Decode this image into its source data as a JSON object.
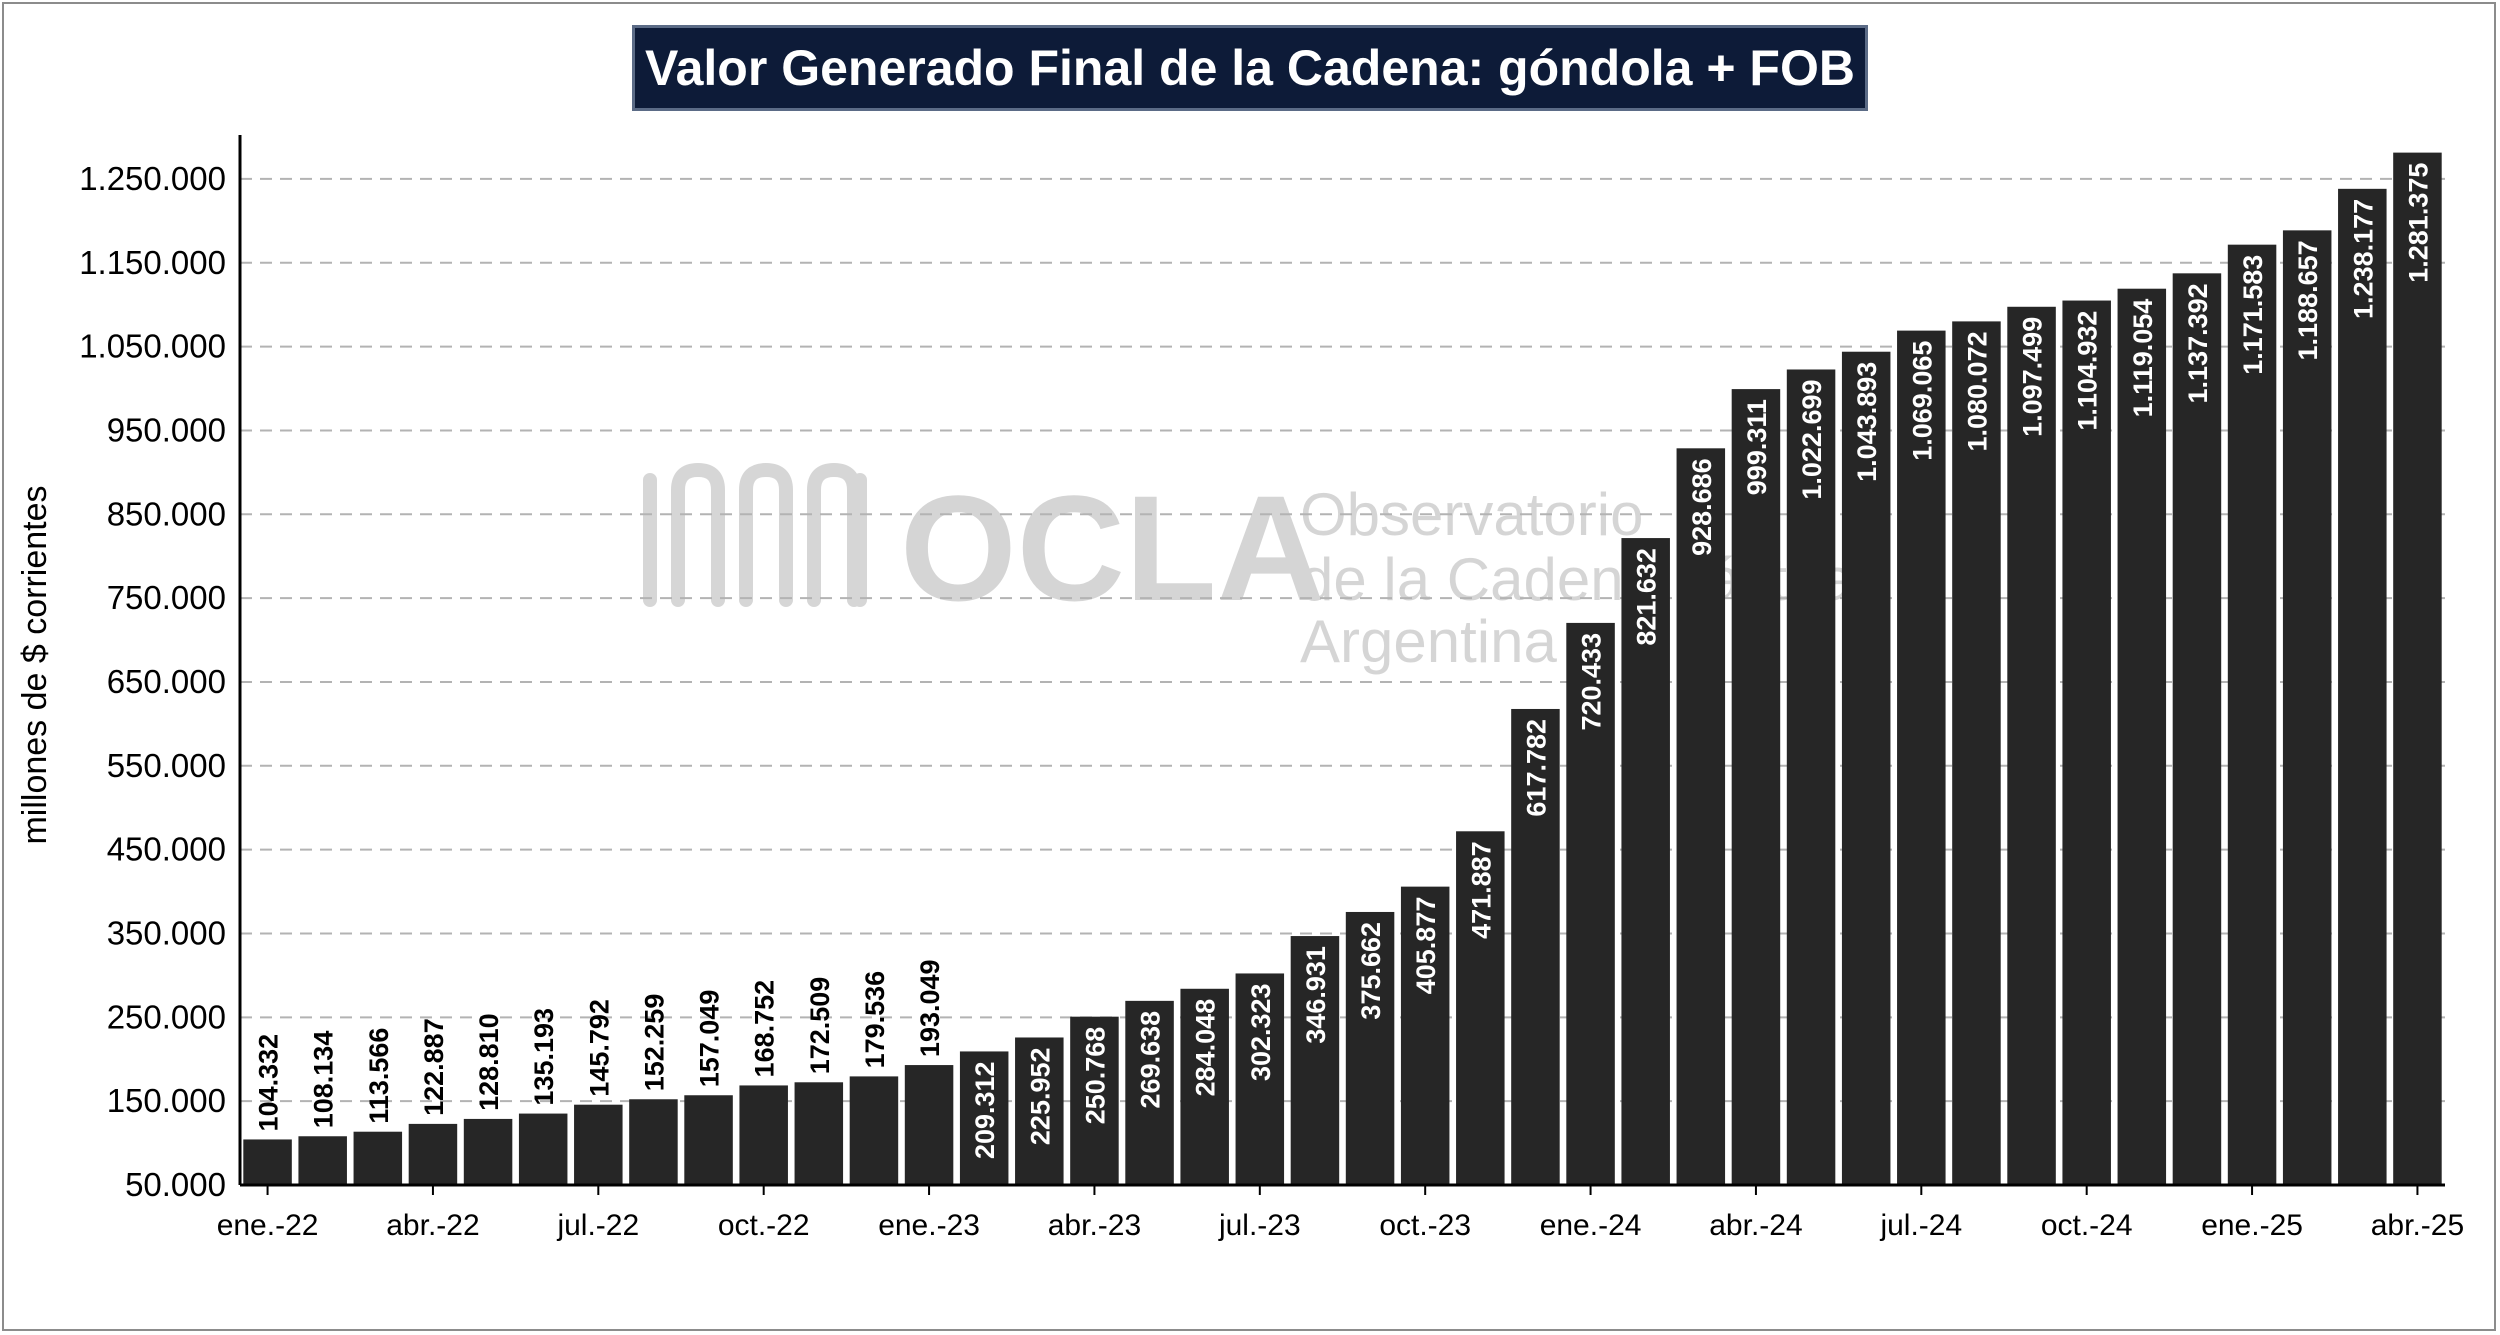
{
  "chart_data": {
    "type": "bar",
    "title": "Valor Generado Final de la Cadena: góndola + FOB",
    "xlabel": "",
    "ylabel": "millones de $ corrientes",
    "ylim": [
      50000,
      1300000
    ],
    "yticks": [
      50000,
      150000,
      250000,
      350000,
      450000,
      550000,
      650000,
      750000,
      850000,
      950000,
      1050000,
      1150000,
      1250000
    ],
    "ytick_labels": [
      "50.000",
      "150.000",
      "250.000",
      "350.000",
      "450.000",
      "550.000",
      "650.000",
      "750.000",
      "850.000",
      "950.000",
      "1.050.000",
      "1.150.000",
      "1.250.000"
    ],
    "x_tick_labels": [
      "ene.-22",
      "",
      "",
      "abr.-22",
      "",
      "",
      "jul.-22",
      "",
      "",
      "oct.-22",
      "",
      "",
      "ene.-23",
      "",
      "",
      "abr.-23",
      "",
      "",
      "jul.-23",
      "",
      "",
      "oct.-23",
      "",
      "",
      "ene.-24",
      "",
      "",
      "abr.-24",
      "",
      "",
      "jul.-24",
      "",
      "",
      "oct.-24",
      "",
      "",
      "ene.-25",
      "",
      "",
      "abr.-25"
    ],
    "values": [
      104332,
      108134,
      113566,
      122887,
      128810,
      135193,
      145792,
      152259,
      157049,
      168752,
      172509,
      179536,
      193049,
      209312,
      225952,
      250768,
      269638,
      284048,
      302323,
      346931,
      375662,
      405877,
      471887,
      617782,
      720433,
      821632,
      928686,
      999311,
      1022699,
      1043893,
      1069065,
      1080072,
      1097499,
      1104932,
      1119054,
      1137392,
      1171583,
      1188657,
      1238177,
      1281375
    ],
    "value_labels": [
      "104.332",
      "108.134",
      "113.566",
      "122.887",
      "128.810",
      "135.193",
      "145.792",
      "152.259",
      "157.049",
      "168.752",
      "172.509",
      "179.536",
      "193.049",
      "209.312",
      "225.952",
      "250.768",
      "269.638",
      "284.048",
      "302.323",
      "346.931",
      "375.662",
      "405.877",
      "471.887",
      "617.782",
      "720.433",
      "821.632",
      "928.686",
      "999.311",
      "1.022.699",
      "1.043.893",
      "1.069.065",
      "1.080.072",
      "1.097.499",
      "1.104.932",
      "1.119.054",
      "1.137.392",
      "1.171.583",
      "1.188.657",
      "1.238.177",
      "1.281.375"
    ],
    "grid": true,
    "legend": "none",
    "colors": {
      "bar": "#262626",
      "grid": "#b3b3b3",
      "title_bg": "#0d1b38"
    }
  },
  "watermark": {
    "brand": "OCLA",
    "line1": "Observatorio",
    "line2": "de la Cadena Láctea",
    "line3": "Argentina"
  }
}
